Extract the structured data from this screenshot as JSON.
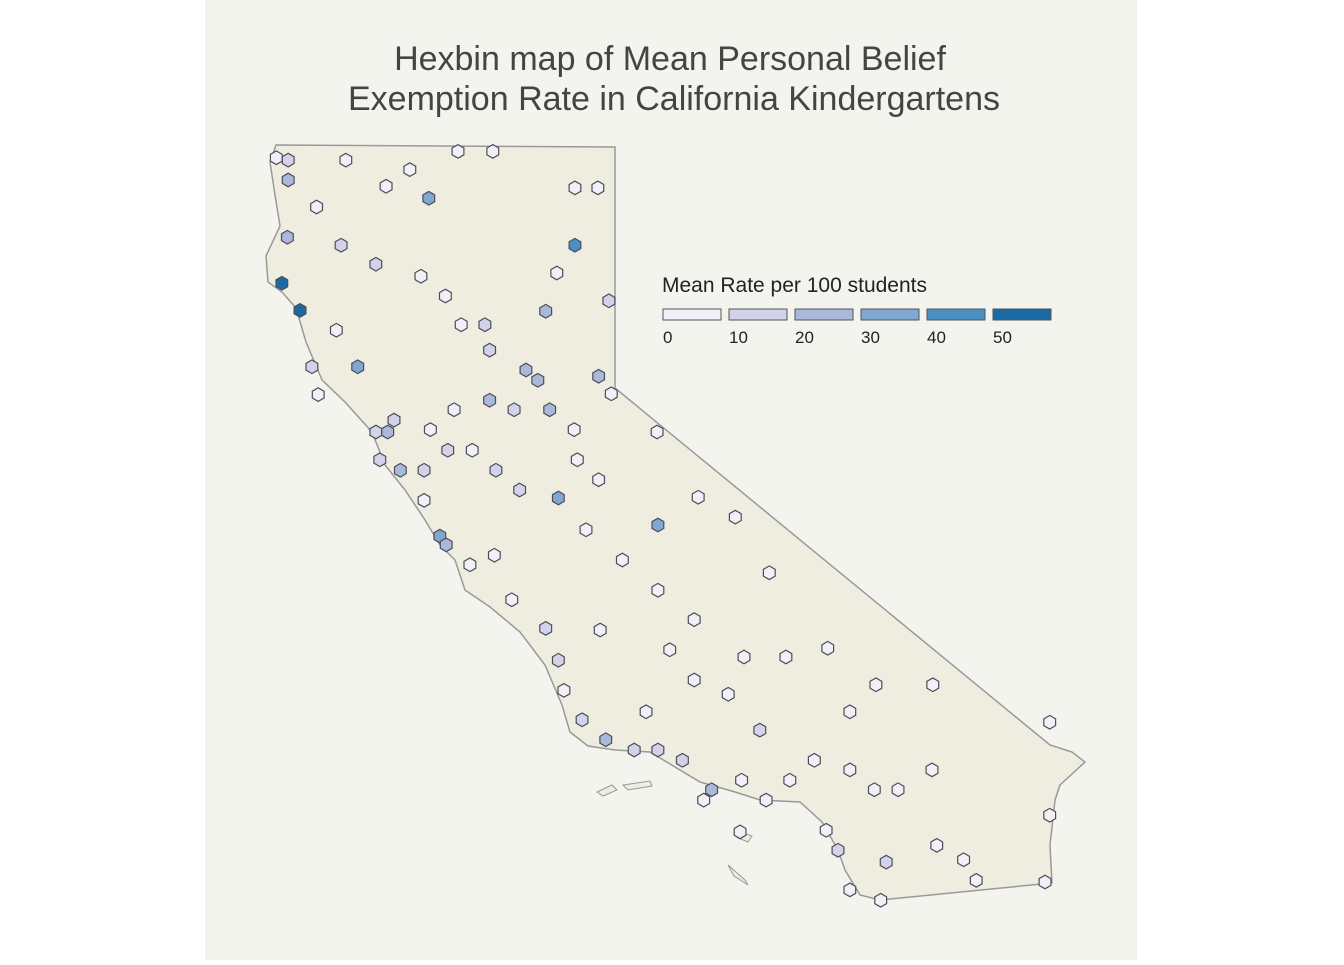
{
  "chart_data": {
    "type": "hexbin-map",
    "title": [
      "Hexbin map of Mean Personal Belief",
      "Exemption Rate in California Kindergartens"
    ],
    "legend": {
      "title": "Mean Rate per 100 students",
      "breaks": [
        0,
        10,
        20,
        30,
        40,
        50
      ],
      "colors": [
        "#f1f0f6",
        "#d2d3e8",
        "#aab9d9",
        "#80a7cf",
        "#4a90c2",
        "#1b6aa3"
      ]
    },
    "hex_color_stroke": "#4d4d5a",
    "lon": [
      -124.32,
      -124.17,
      -124.17,
      -123.44,
      -122.02,
      -121.58,
      -122.93,
      -122.63,
      -122.39,
      -120.54,
      -120.25,
      -123.81,
      -124.18,
      -123.5,
      -123.06,
      -120.54,
      -124.25,
      -124.02,
      -122.49,
      -122.18,
      -121.98,
      -121.68,
      -120.77,
      -120.91,
      -120.11,
      -123.56,
      -123.29,
      -123.87,
      -123.79,
      -120.24,
      -120.08,
      -119.5,
      -118.98,
      -118.51,
      -118.08,
      -118.4,
      -117.87,
      -117.34,
      -116.73,
      -116.01,
      -114.53,
      -114.53,
      -114.59,
      -115.96,
      -116.67,
      -121.62,
      -121.16,
      -121.01,
      -121.62,
      -121.31,
      -120.86,
      -120.55,
      -122.07,
      -122.37,
      -122.83,
      -123.06,
      -122.91,
      -123.01,
      -122.75,
      -122.45,
      -122.15,
      -121.84,
      -121.54,
      -121.24,
      -120.75,
      -120.51,
      -120.24,
      -122.45,
      -122.25,
      -122.17,
      -121.87,
      -121.56,
      -121.34,
      -120.91,
      -120.4,
      -119.94,
      -119.49,
      -119.03,
      -119.49,
      -120.22,
      -119.34,
      -119.03,
      -119.64,
      -118.6,
      -120.75,
      -120.68,
      -120.45,
      -120.15,
      -119.79,
      -119.49,
      -119.18,
      -118.81,
      -118.43,
      -118.12,
      -117.82,
      -117.51,
      -117.06,
      -116.75,
      -116.45,
      -118.2,
      -117.06,
      -117.36,
      -117.21,
      -117.06,
      -116.6,
      -118.45,
      -116.02,
      -115.62,
      -115.46,
      -118.91
    ],
    "lat": [
      41.84,
      41.81,
      41.56,
      41.81,
      41.92,
      41.92,
      41.48,
      41.69,
      41.33,
      41.46,
      41.46,
      41.22,
      40.84,
      40.74,
      40.5,
      40.74,
      40.26,
      39.92,
      40.35,
      40.1,
      39.74,
      39.74,
      40.39,
      39.91,
      40.04,
      39.67,
      39.21,
      39.21,
      38.86,
      39.09,
      38.87,
      38.39,
      37.57,
      37.32,
      36.62,
      35.56,
      35.56,
      35.67,
      35.21,
      35.21,
      34.74,
      33.57,
      32.73,
      33.19,
      32.5,
      39.42,
      39.17,
      39.04,
      38.79,
      38.67,
      38.67,
      38.42,
      38.67,
      38.42,
      38.54,
      38.39,
      38.39,
      38.04,
      37.91,
      37.91,
      38.16,
      38.16,
      37.91,
      37.66,
      37.56,
      38.04,
      37.79,
      37.53,
      37.08,
      36.97,
      36.72,
      36.84,
      36.28,
      35.92,
      37.16,
      36.78,
      36.4,
      36.03,
      37.22,
      35.9,
      35.65,
      35.27,
      34.87,
      35.09,
      35.52,
      35.14,
      34.77,
      34.52,
      34.39,
      34.39,
      34.26,
      33.89,
      34.01,
      33.76,
      34.01,
      34.26,
      34.14,
      33.89,
      33.89,
      34.64,
      34.87,
      33.38,
      33.13,
      32.63,
      32.98,
      33.36,
      34.14,
      33.01,
      32.75,
      33.76
    ],
    "values": [
      3,
      15,
      20,
      3,
      3,
      3,
      8,
      5,
      30,
      3,
      3,
      3,
      25,
      15,
      10,
      40,
      55,
      55,
      8,
      8,
      8,
      10,
      8,
      25,
      15,
      8,
      30,
      10,
      3,
      25,
      3,
      3,
      5,
      5,
      3,
      5,
      5,
      3,
      3,
      3,
      5,
      5,
      5,
      5,
      5,
      10,
      20,
      25,
      25,
      10,
      25,
      8,
      8,
      8,
      10,
      15,
      20,
      10,
      25,
      10,
      10,
      5,
      10,
      10,
      30,
      8,
      8,
      8,
      30,
      20,
      8,
      8,
      5,
      15,
      8,
      5,
      8,
      5,
      30,
      3,
      5,
      5,
      5,
      8,
      15,
      8,
      10,
      20,
      10,
      10,
      10,
      25,
      8,
      8,
      8,
      8,
      8,
      8,
      8,
      10,
      3,
      8,
      10,
      8,
      15,
      5,
      5,
      5,
      5,
      8
    ]
  }
}
